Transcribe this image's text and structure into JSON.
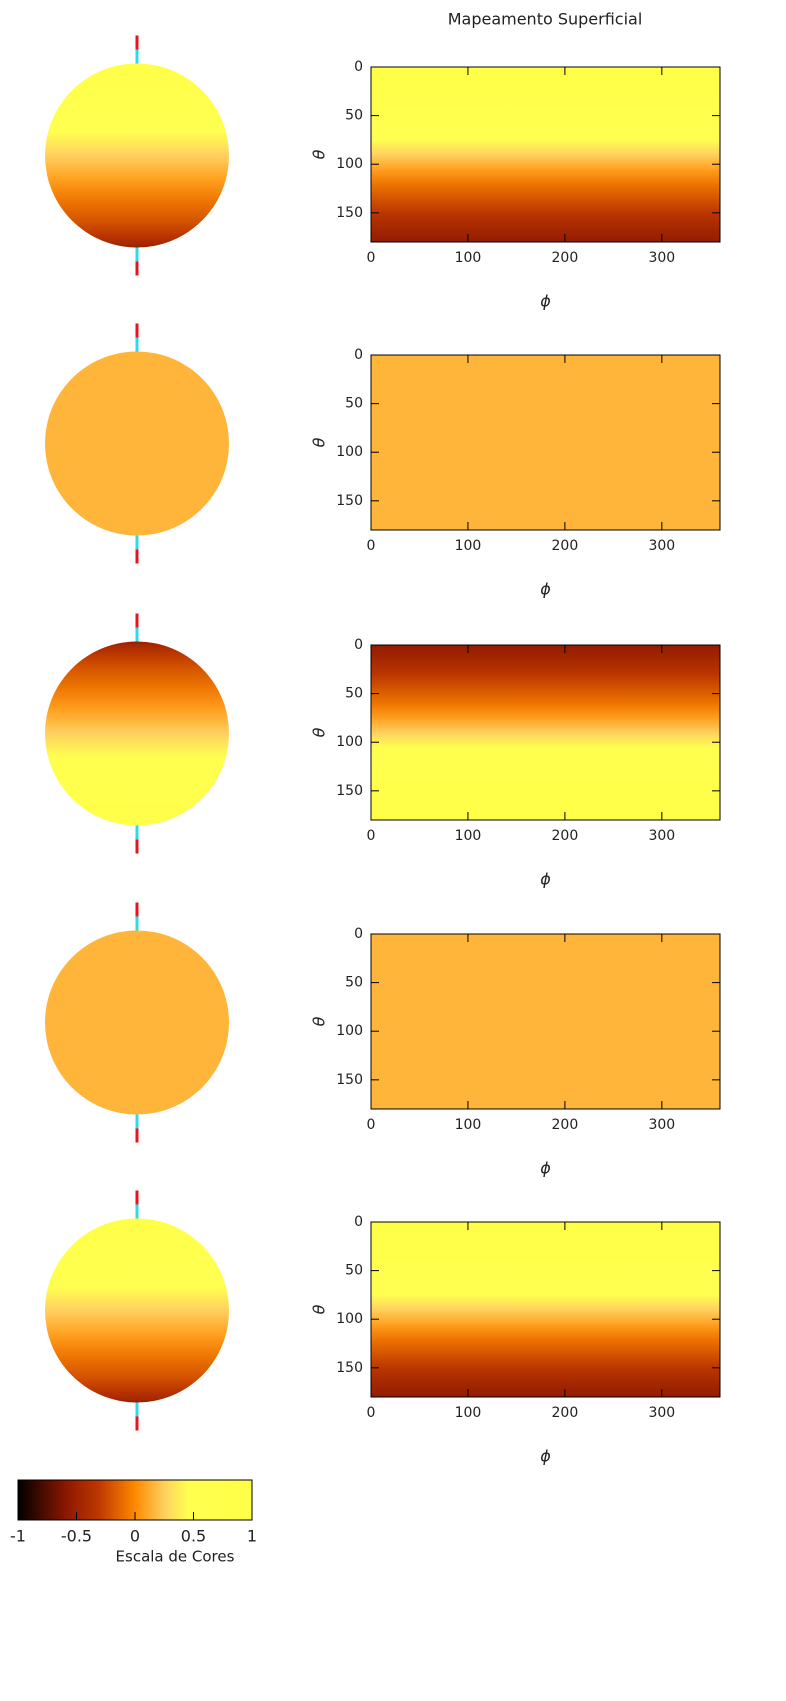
{
  "chart_data": [
    {
      "type": "heatmap",
      "title": "Mapeamento Superficial",
      "xlabel": "ϕ",
      "ylabel": "θ",
      "xlim": [
        0,
        360
      ],
      "ylim": [
        180,
        0
      ],
      "xticks": [
        0,
        100,
        200,
        300
      ],
      "yticks": [
        0,
        50,
        100,
        150
      ],
      "y": [
        0,
        15,
        30,
        45,
        60,
        75,
        90,
        105,
        120,
        135,
        150,
        165,
        180
      ],
      "values": [
        1.0,
        0.95,
        0.85,
        0.72,
        0.6,
        0.45,
        0.25,
        0.08,
        -0.08,
        -0.2,
        -0.33,
        -0.45,
        -0.55
      ]
    },
    {
      "type": "heatmap",
      "xlabel": "ϕ",
      "ylabel": "θ",
      "xlim": [
        0,
        360
      ],
      "ylim": [
        180,
        0
      ],
      "xticks": [
        0,
        100,
        200,
        300
      ],
      "yticks": [
        0,
        50,
        100,
        150
      ],
      "y": [
        0,
        180
      ],
      "values": [
        0.15,
        0.15
      ]
    },
    {
      "type": "heatmap",
      "xlabel": "ϕ",
      "ylabel": "θ",
      "xlim": [
        0,
        360
      ],
      "ylim": [
        180,
        0
      ],
      "xticks": [
        0,
        100,
        200,
        300
      ],
      "yticks": [
        0,
        50,
        100,
        150
      ],
      "y": [
        0,
        15,
        30,
        45,
        60,
        75,
        90,
        105,
        120,
        135,
        150,
        165,
        180
      ],
      "values": [
        -0.55,
        -0.45,
        -0.33,
        -0.2,
        -0.08,
        0.08,
        0.25,
        0.45,
        0.6,
        0.72,
        0.85,
        0.95,
        1.0
      ]
    },
    {
      "type": "heatmap",
      "xlabel": "ϕ",
      "ylabel": "θ",
      "xlim": [
        0,
        360
      ],
      "ylim": [
        180,
        0
      ],
      "xticks": [
        0,
        100,
        200,
        300
      ],
      "yticks": [
        0,
        50,
        100,
        150
      ],
      "y": [
        0,
        180
      ],
      "values": [
        0.15,
        0.15
      ]
    },
    {
      "type": "heatmap",
      "xlabel": "ϕ",
      "ylabel": "θ",
      "xlim": [
        0,
        360
      ],
      "ylim": [
        180,
        0
      ],
      "xticks": [
        0,
        100,
        200,
        300
      ],
      "yticks": [
        0,
        50,
        100,
        150
      ],
      "y": [
        0,
        15,
        30,
        45,
        60,
        75,
        90,
        105,
        120,
        135,
        150,
        165,
        180
      ],
      "values": [
        1.0,
        0.95,
        0.85,
        0.72,
        0.6,
        0.45,
        0.25,
        0.08,
        -0.08,
        -0.2,
        -0.33,
        -0.45,
        -0.55
      ]
    },
    {
      "type": "colorbar",
      "label": "Escala de Cores",
      "xlim": [
        -1,
        1
      ],
      "xticks": [
        -1,
        -0.5,
        0,
        0.5,
        1
      ],
      "colormap": [
        {
          "value": -1,
          "color": "#000000"
        },
        {
          "value": -0.6,
          "color": "#8a1600"
        },
        {
          "value": -0.3,
          "color": "#c03a00"
        },
        {
          "value": 0,
          "color": "#ff8a00"
        },
        {
          "value": 0.25,
          "color": "#ffd060"
        },
        {
          "value": 0.45,
          "color": "#ffff50"
        },
        {
          "value": 1,
          "color": "#ffff48"
        }
      ]
    }
  ]
}
